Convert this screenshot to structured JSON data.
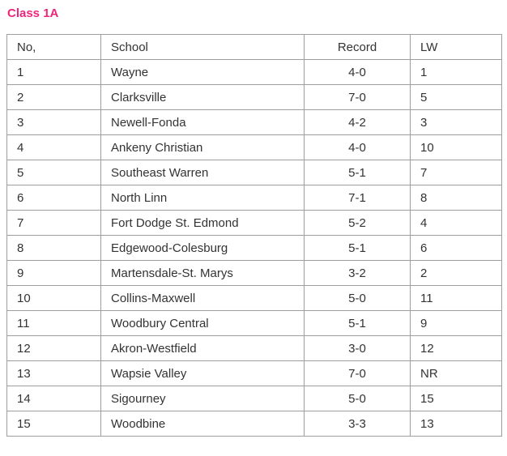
{
  "title": "Class 1A",
  "colors": {
    "title": "#ED267B",
    "border": "#9e9e9e",
    "text": "#333333",
    "background": "#ffffff"
  },
  "table": {
    "headers": {
      "no": "No,",
      "school": "School",
      "record": "Record",
      "lw": "LW"
    },
    "rows": [
      {
        "no": "1",
        "school": "Wayne",
        "record": "4-0",
        "lw": "1"
      },
      {
        "no": "2",
        "school": "Clarksville",
        "record": "7-0",
        "lw": "5"
      },
      {
        "no": "3",
        "school": "Newell-Fonda",
        "record": "4-2",
        "lw": "3"
      },
      {
        "no": "4",
        "school": "Ankeny Christian",
        "record": "4-0",
        "lw": "10"
      },
      {
        "no": "5",
        "school": "Southeast Warren",
        "record": "5-1",
        "lw": "7"
      },
      {
        "no": "6",
        "school": "North Linn",
        "record": "7-1",
        "lw": "8"
      },
      {
        "no": "7",
        "school": "Fort Dodge St. Edmond",
        "record": "5-2",
        "lw": "4"
      },
      {
        "no": "8",
        "school": "Edgewood-Colesburg",
        "record": "5-1",
        "lw": "6"
      },
      {
        "no": "9",
        "school": "Martensdale-St. Marys",
        "record": "3-2",
        "lw": "2"
      },
      {
        "no": "10",
        "school": "Collins-Maxwell",
        "record": "5-0",
        "lw": "11"
      },
      {
        "no": "11",
        "school": "Woodbury Central",
        "record": "5-1",
        "lw": "9"
      },
      {
        "no": "12",
        "school": "Akron-Westfield",
        "record": "3-0",
        "lw": "12"
      },
      {
        "no": "13",
        "school": "Wapsie Valley",
        "record": "7-0",
        "lw": "NR"
      },
      {
        "no": "14",
        "school": "Sigourney",
        "record": "5-0",
        "lw": "15"
      },
      {
        "no": "15",
        "school": "Woodbine",
        "record": "3-3",
        "lw": "13"
      }
    ]
  }
}
